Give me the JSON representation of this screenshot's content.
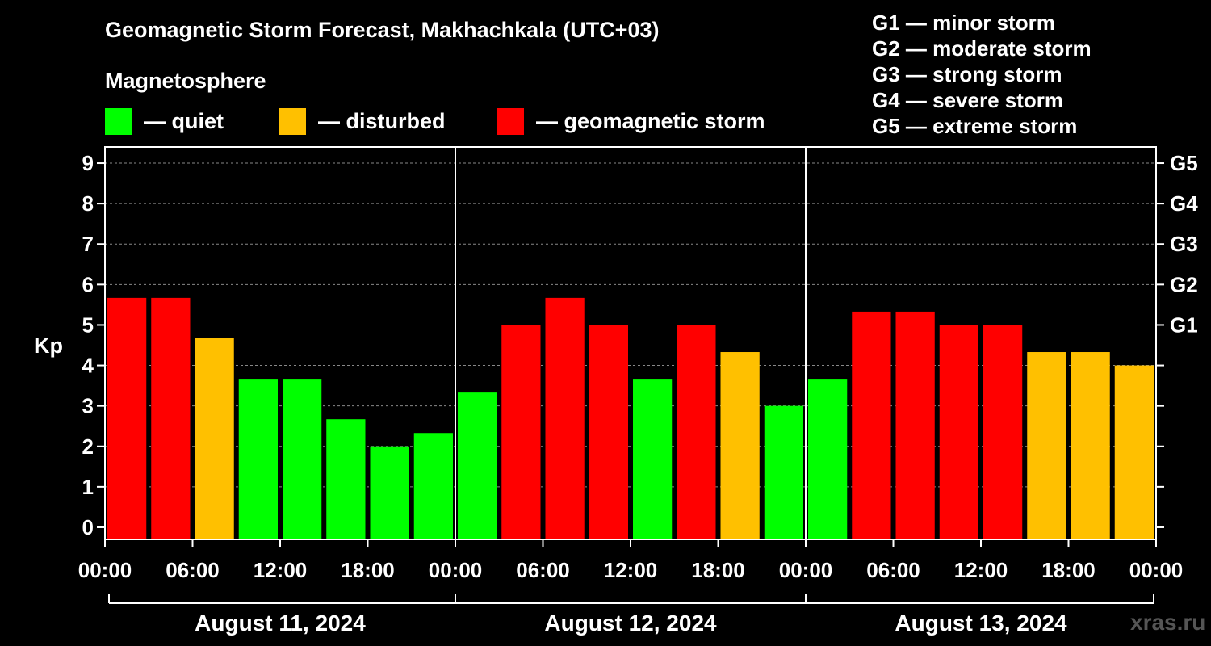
{
  "title": "Geomagnetic Storm Forecast, Makhachkala (UTC+03)",
  "subtitle": "Magnetosphere",
  "legend": [
    {
      "label": "— quiet",
      "color": "#00ff00"
    },
    {
      "label": "— disturbed",
      "color": "#ffc000"
    },
    {
      "label": "— geomagnetic storm",
      "color": "#ff0000"
    }
  ],
  "g_scale": [
    "G1 — minor storm",
    "G2 — moderate storm",
    "G3 — strong storm",
    "G4 — severe storm",
    "G5 — extreme storm"
  ],
  "watermark": "xras.ru",
  "colors": {
    "quiet": "#00ff00",
    "disturbed": "#ffc000",
    "storm": "#ff0000"
  },
  "chart_data": {
    "type": "bar",
    "ylabel": "Kp",
    "ylim": [
      -0.3,
      9.4
    ],
    "yticks": [
      0,
      1,
      2,
      3,
      4,
      5,
      6,
      7,
      8,
      9
    ],
    "right_ticks": [
      {
        "value": 5,
        "label": "G1"
      },
      {
        "value": 6,
        "label": "G2"
      },
      {
        "value": 7,
        "label": "G3"
      },
      {
        "value": 8,
        "label": "G4"
      },
      {
        "value": 9,
        "label": "G5"
      }
    ],
    "grid": true,
    "xtick_labels": [
      "00:00",
      "06:00",
      "12:00",
      "18:00",
      "00:00",
      "06:00",
      "12:00",
      "18:00",
      "00:00",
      "06:00",
      "12:00",
      "18:00",
      "00:00"
    ],
    "days": [
      "August 11, 2024",
      "August 12, 2024",
      "August 13, 2024"
    ],
    "values": [
      5.67,
      5.67,
      4.67,
      3.67,
      3.67,
      2.67,
      2.0,
      2.33,
      3.33,
      5.0,
      5.67,
      5.0,
      3.67,
      5.0,
      4.33,
      3.0,
      3.67,
      5.33,
      5.33,
      5.0,
      5.0,
      4.33,
      4.33,
      4.0
    ],
    "levels": [
      "storm",
      "storm",
      "disturbed",
      "quiet",
      "quiet",
      "quiet",
      "quiet",
      "quiet",
      "quiet",
      "storm",
      "storm",
      "storm",
      "quiet",
      "storm",
      "disturbed",
      "quiet",
      "quiet",
      "storm",
      "storm",
      "storm",
      "storm",
      "disturbed",
      "disturbed",
      "disturbed"
    ]
  }
}
